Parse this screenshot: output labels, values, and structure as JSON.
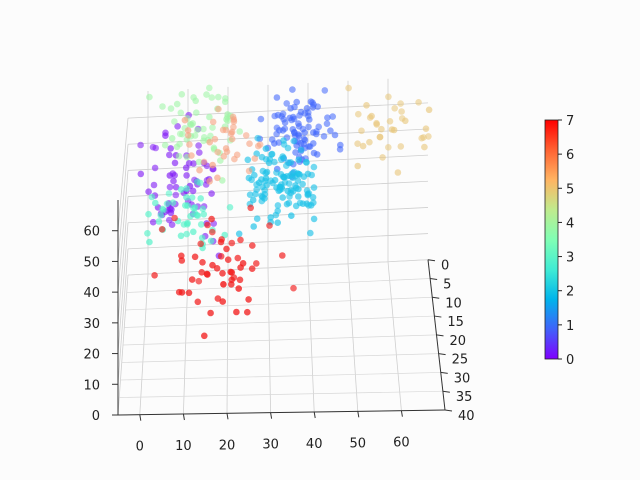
{
  "chart_data": {
    "type": "scatter3d",
    "title": "",
    "xlabel": "",
    "ylabel": "",
    "zlabel": "",
    "xlim": [
      -5,
      70
    ],
    "ylim": [
      0,
      40
    ],
    "zlim": [
      0,
      70
    ],
    "x_ticks": [
      "0",
      "10",
      "20",
      "30",
      "40",
      "50",
      "60"
    ],
    "y_ticks": [
      "0",
      "5",
      "10",
      "15",
      "20",
      "25",
      "30",
      "35",
      "40"
    ],
    "z_ticks": [
      "0",
      "10",
      "20",
      "30",
      "40",
      "50",
      "60"
    ],
    "colorbar": {
      "cmap": "rainbow",
      "range": [
        0,
        7
      ],
      "ticks": [
        "0",
        "1",
        "2",
        "3",
        "4",
        "5",
        "6",
        "7"
      ],
      "colors": [
        "#8000ff",
        "#4062fa",
        "#00b4eb",
        "#40ecd4",
        "#80ffb4",
        "#c0eb8d",
        "#ffb462",
        "#ff6232",
        "#ff0000"
      ]
    },
    "grid": true,
    "clusters": [
      {
        "class": 0,
        "color": "#7f19f5",
        "x_center": 8,
        "y_center": 5,
        "z_center": 40,
        "spread": [
          6,
          3,
          9
        ],
        "count": 70
      },
      {
        "class": 1,
        "color": "#3f66fb",
        "x_center": 38,
        "y_center": 2,
        "z_center": 55,
        "spread": [
          4,
          2,
          6
        ],
        "count": 90
      },
      {
        "class": 2,
        "color": "#1ec2e8",
        "x_center": 33,
        "y_center": 8,
        "z_center": 42,
        "spread": [
          5,
          3,
          7
        ],
        "count": 120
      },
      {
        "class": 3,
        "color": "#52f2c8",
        "x_center": 9,
        "y_center": 9,
        "z_center": 33,
        "spread": [
          5,
          3,
          5
        ],
        "count": 45
      },
      {
        "class": 4,
        "color": "#9cf5a4",
        "x_center": 13,
        "y_center": 2,
        "z_center": 60,
        "spread": [
          5,
          2,
          8
        ],
        "count": 55
      },
      {
        "class": 5,
        "color": "#e8c67a",
        "x_center": 60,
        "y_center": 3,
        "z_center": 55,
        "spread": [
          6,
          3,
          7
        ],
        "count": 35
      },
      {
        "class": 6,
        "color": "#f6a07e",
        "x_center": 20,
        "y_center": 4,
        "z_center": 55,
        "spread": [
          7,
          3,
          7
        ],
        "count": 35
      },
      {
        "class": 7,
        "color": "#f21a1a",
        "x_center": 18,
        "y_center": 16,
        "z_center": 22,
        "spread": [
          8,
          4,
          7
        ],
        "count": 55
      }
    ]
  }
}
